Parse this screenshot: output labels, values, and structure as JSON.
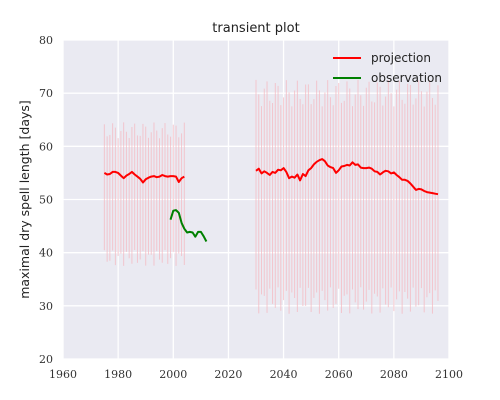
{
  "chart_data": {
    "type": "line",
    "title": "transient plot",
    "xlabel": "",
    "ylabel": "maximal dry spell length [days]",
    "xlim": [
      1960,
      2100
    ],
    "ylim": [
      20,
      80
    ],
    "xticks": [
      1960,
      1980,
      2000,
      2020,
      2040,
      2060,
      2080,
      2100
    ],
    "yticks": [
      20,
      30,
      40,
      50,
      60,
      70,
      80
    ],
    "grid": true,
    "legend_position": "top-right",
    "colors": {
      "projection": "#ff0000",
      "observation": "#008000",
      "range": "#f4b8c0",
      "background": "#eaeaf2",
      "grid": "#ffffff"
    },
    "series": [
      {
        "name": "projection",
        "color": "#ff0000",
        "segments": [
          {
            "x": [
              1975,
              1976,
              1977,
              1978,
              1979,
              1980,
              1981,
              1982,
              1983,
              1984,
              1985,
              1986,
              1987,
              1988,
              1989,
              1990,
              1991,
              1992,
              1993,
              1994,
              1995,
              1996,
              1997,
              1998,
              1999,
              2000,
              2001,
              2002,
              2003,
              2004
            ],
            "y": [
              55.0,
              54.7,
              54.8,
              55.2,
              55.2,
              55.0,
              54.5,
              54.0,
              54.5,
              54.8,
              55.2,
              54.7,
              54.3,
              53.9,
              53.2,
              53.8,
              54.1,
              54.3,
              54.4,
              54.2,
              54.3,
              54.6,
              54.4,
              54.3,
              54.4,
              54.4,
              54.3,
              53.3,
              54.0,
              54.3
            ]
          },
          {
            "x": [
              2030,
              2031,
              2032,
              2033,
              2034,
              2035,
              2036,
              2037,
              2038,
              2039,
              2040,
              2041,
              2042,
              2043,
              2044,
              2045,
              2046,
              2047,
              2048,
              2049,
              2050,
              2051,
              2052,
              2053,
              2054,
              2055,
              2056,
              2057,
              2058,
              2059,
              2060,
              2061,
              2062,
              2063,
              2064,
              2065,
              2066,
              2067,
              2068,
              2069,
              2070,
              2071,
              2072,
              2073,
              2074,
              2075,
              2076,
              2077,
              2078,
              2079,
              2080,
              2081,
              2082,
              2083,
              2084,
              2085,
              2086,
              2087,
              2088,
              2089,
              2090,
              2091,
              2092,
              2093,
              2094,
              2095,
              2096
            ],
            "y": [
              55.4,
              55.8,
              54.9,
              55.3,
              55.0,
              54.6,
              55.2,
              55.0,
              55.6,
              55.5,
              55.9,
              55.2,
              54.0,
              54.3,
              54.1,
              54.7,
              53.6,
              54.8,
              54.4,
              55.5,
              55.9,
              56.6,
              57.1,
              57.4,
              57.6,
              57.2,
              56.4,
              56.1,
              55.9,
              55.0,
              55.5,
              56.2,
              56.3,
              56.5,
              56.4,
              57.0,
              56.5,
              56.6,
              56.0,
              55.9,
              55.9,
              56.0,
              55.8,
              55.3,
              55.2,
              54.7,
              55.1,
              55.4,
              55.3,
              54.9,
              55.1,
              54.6,
              54.2,
              53.7,
              53.7,
              53.5,
              53.0,
              52.4,
              51.8,
              52.0,
              51.9,
              51.6,
              51.4,
              51.3,
              51.2,
              51.1,
              51.0
            ]
          }
        ]
      },
      {
        "name": "observation",
        "color": "#008000",
        "segments": [
          {
            "x": [
              1999,
              2000,
              2001,
              2002,
              2003,
              2004,
              2005,
              2006,
              2007,
              2008,
              2009,
              2010,
              2011,
              2012
            ],
            "y": [
              46.2,
              47.9,
              48.0,
              47.5,
              45.6,
              44.5,
              43.8,
              43.9,
              43.8,
              43.0,
              43.9,
              43.9,
              43.1,
              42.1
            ]
          }
        ]
      }
    ],
    "range_bands": [
      {
        "x0": 1975,
        "x1": 2004,
        "low": 39,
        "high": 63,
        "wobble": 1.5
      },
      {
        "x0": 2030,
        "x1": 2096,
        "low": 31,
        "high": 70,
        "wobble": 2.5
      }
    ]
  }
}
